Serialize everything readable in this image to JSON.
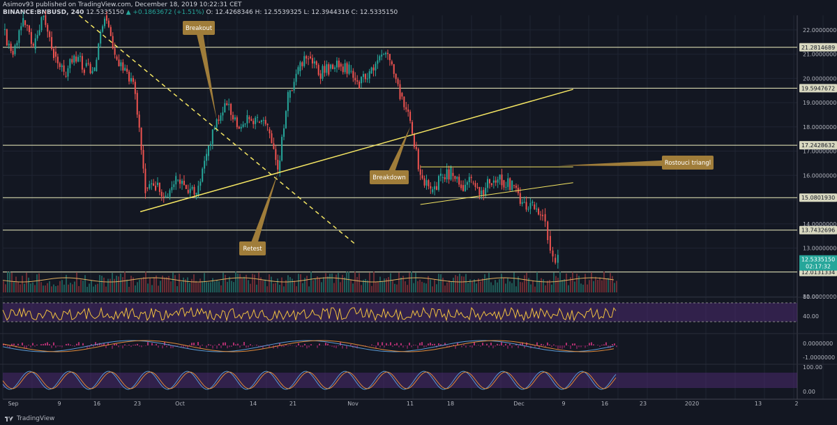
{
  "header": {
    "publisher_line": "Asimov93 published on TradingView.com, December 18, 2019 10:22:31 CET",
    "symbol": "BINANCE:BNBUSD, 240",
    "last": "12.5335150",
    "change": "▲ +0.1863672 (+1.51%)",
    "ohlc": "O: 12.4268346 H: 12.5539325 L: 12.3944316 C: 12.5335150"
  },
  "footer": {
    "brand": "TradingView"
  },
  "colors": {
    "background": "#131722",
    "up_candle": "#26a69a",
    "down_candle": "#ef5350",
    "annotation_fill": "#a07d3a",
    "trendline": "#f5e663",
    "hline": "#f0f0c0",
    "rsi_band": "#4a2a6e",
    "rsi_line": "#f0c040"
  },
  "annotations": [
    {
      "text": "Breakout",
      "points_to_date": "2019-10-12",
      "points_to_price": 18.3
    },
    {
      "text": "Retest",
      "points_to_date": "2019-10-24",
      "points_to_price": 16.1
    },
    {
      "text": "Breakdown",
      "points_to_date": "2019-11-19",
      "points_to_price": 18.0
    },
    {
      "text": "Rostouci triangl",
      "points_to_date": "2019-12-18",
      "points_to_price": 16.4
    }
  ],
  "chart_data": {
    "type": "candlestick",
    "x_axis_ticks": [
      "Sep",
      "9",
      "16",
      "23",
      "Oct",
      "14",
      "21",
      "Nov",
      "11",
      "18",
      "Dec",
      "9",
      "16",
      "23",
      "2020",
      "13",
      "2"
    ],
    "y_axis_ticks": [
      "22.0000000",
      "21.0000000",
      "20.0000000",
      "19.0000000",
      "18.0000000",
      "17.0000000",
      "16.0000000",
      "14.0000000",
      "13.0000000",
      "11.0000000"
    ],
    "ylim": [
      11.0,
      22.6
    ],
    "horizontal_levels": [
      {
        "price": 21.2814689,
        "label": "21.2814689"
      },
      {
        "price": 19.5947672,
        "label": "19.5947672"
      },
      {
        "price": 17.2428632,
        "label": "17.2428632"
      },
      {
        "price": 15.080193,
        "label": "15.0801930"
      },
      {
        "price": 13.7432696,
        "label": "13.7432696"
      },
      {
        "price": 12.0131334,
        "label": "12.0131334"
      }
    ],
    "current_price": {
      "label": "12.5335150",
      "countdown": "02:17:32",
      "price": 12.533515
    },
    "price_series": [
      [
        "2019-08-31",
        22.0
      ],
      [
        "2019-09-02",
        21.0
      ],
      [
        "2019-09-04",
        22.4
      ],
      [
        "2019-09-06",
        21.2
      ],
      [
        "2019-09-08",
        22.6
      ],
      [
        "2019-09-10",
        21.1
      ],
      [
        "2019-09-12",
        20.1
      ],
      [
        "2019-09-14",
        20.9
      ],
      [
        "2019-09-16",
        20.5
      ],
      [
        "2019-09-18",
        20.3
      ],
      [
        "2019-09-20",
        22.6
      ],
      [
        "2019-09-22",
        20.9
      ],
      [
        "2019-09-24",
        20.4
      ],
      [
        "2019-09-26",
        19.4
      ],
      [
        "2019-09-28",
        15.5
      ],
      [
        "2019-09-30",
        15.6
      ],
      [
        "2019-10-02",
        15.1
      ],
      [
        "2019-10-04",
        15.8
      ],
      [
        "2019-10-06",
        15.4
      ],
      [
        "2019-10-08",
        15.2
      ],
      [
        "2019-10-10",
        16.8
      ],
      [
        "2019-10-12",
        18.3
      ],
      [
        "2019-10-14",
        18.9
      ],
      [
        "2019-10-16",
        18.0
      ],
      [
        "2019-10-18",
        18.4
      ],
      [
        "2019-10-20",
        18.2
      ],
      [
        "2019-10-22",
        17.9
      ],
      [
        "2019-10-24",
        16.1
      ],
      [
        "2019-10-26",
        19.2
      ],
      [
        "2019-10-28",
        20.3
      ],
      [
        "2019-10-30",
        20.9
      ],
      [
        "2019-11-01",
        20.2
      ],
      [
        "2019-11-03",
        20.4
      ],
      [
        "2019-11-05",
        20.6
      ],
      [
        "2019-11-07",
        20.3
      ],
      [
        "2019-11-09",
        19.8
      ],
      [
        "2019-11-11",
        20.2
      ],
      [
        "2019-11-13",
        20.9
      ],
      [
        "2019-11-15",
        20.7
      ],
      [
        "2019-11-17",
        19.4
      ],
      [
        "2019-11-19",
        18.2
      ],
      [
        "2019-11-21",
        16.0
      ],
      [
        "2019-11-23",
        15.3
      ],
      [
        "2019-11-25",
        15.9
      ],
      [
        "2019-11-27",
        16.1
      ],
      [
        "2019-11-29",
        15.6
      ],
      [
        "2019-12-01",
        15.7
      ],
      [
        "2019-12-03",
        15.4
      ],
      [
        "2019-12-05",
        15.7
      ],
      [
        "2019-12-07",
        15.8
      ],
      [
        "2019-12-09",
        15.6
      ],
      [
        "2019-12-11",
        14.9
      ],
      [
        "2019-12-13",
        14.8
      ],
      [
        "2019-12-15",
        14.4
      ],
      [
        "2019-12-16",
        13.5
      ],
      [
        "2019-12-17",
        12.6
      ],
      [
        "2019-12-18",
        12.53
      ]
    ],
    "trendlines": [
      {
        "style": "dashed",
        "from": [
          "2019-09-15",
          22.6
        ],
        "to": [
          "2019-11-08",
          13.2
        ]
      },
      {
        "style": "solid",
        "from": [
          "2019-09-27",
          14.5
        ],
        "to": [
          "2019-12-21",
          19.55
        ]
      },
      {
        "style": "solid-thin",
        "from": [
          "2019-11-21",
          14.8
        ],
        "to": [
          "2019-12-21",
          15.7
        ]
      },
      {
        "style": "solid-thin",
        "from": [
          "2019-11-21",
          16.35
        ],
        "to": [
          "2019-12-21",
          16.35
        ]
      }
    ],
    "indicators": [
      {
        "name": "RSI",
        "ticks": [
          "80.00",
          "40.00"
        ],
        "bands": [
          70,
          30
        ]
      },
      {
        "name": "MACD",
        "ticks": [
          "0.0000000",
          "-1.0000000"
        ]
      },
      {
        "name": "Stoch",
        "ticks": [
          "100.00",
          "0.00"
        ]
      }
    ]
  }
}
